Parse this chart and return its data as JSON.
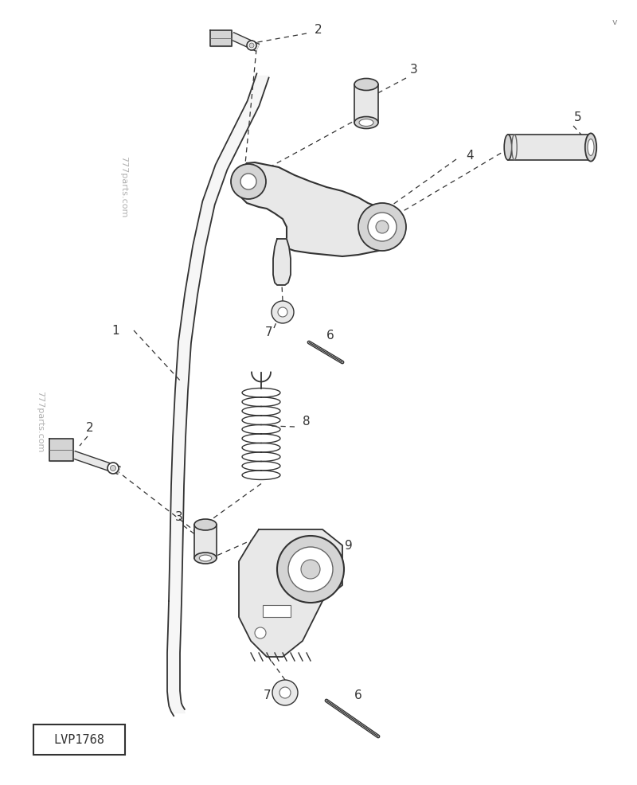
{
  "bg_color": "#ffffff",
  "fig_width": 8.0,
  "fig_height": 9.86,
  "watermark": "777parts.com",
  "label_id": "LVP1768",
  "color_line": "#333333",
  "color_fill": "#e8e8e8",
  "color_fill2": "#d4d4d4",
  "color_mid": "#666666",
  "color_wm": "#b0b0b0"
}
